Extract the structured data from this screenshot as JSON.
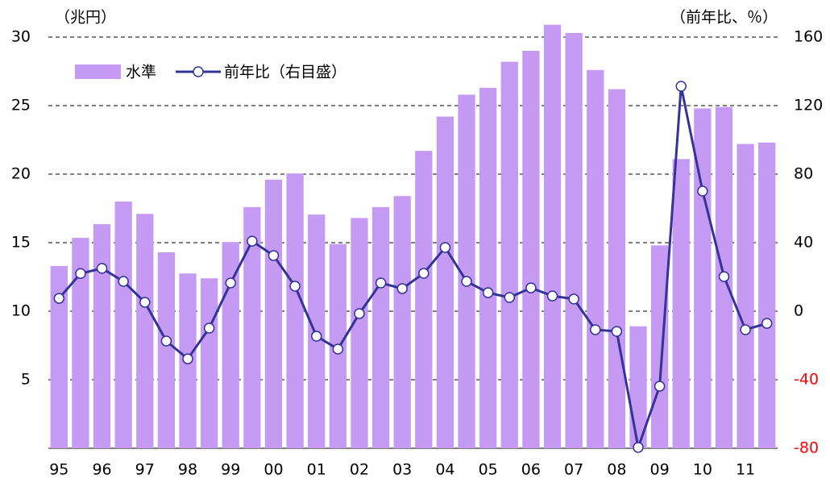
{
  "chart_data": {
    "type": "bar_line",
    "y_unit_label": "（兆円）",
    "y2_unit_label": "（前年比、％）",
    "categories": [
      "95",
      null,
      "96",
      null,
      "97",
      null,
      "98",
      null,
      "99",
      null,
      "00",
      null,
      "01",
      null,
      "02",
      null,
      "03",
      null,
      "04",
      null,
      "05",
      null,
      "06",
      null,
      "07",
      null,
      "08",
      null,
      "09",
      null,
      "10",
      null,
      "11",
      null
    ],
    "series": [
      {
        "name": "水準",
        "type": "bar",
        "color": "#c59af2",
        "values": [
          13.3,
          15.35,
          16.35,
          18.0,
          17.1,
          14.3,
          12.75,
          12.4,
          15.05,
          17.6,
          19.6,
          20.05,
          17.05,
          14.9,
          16.8,
          17.6,
          18.4,
          21.7,
          24.2,
          25.8,
          26.3,
          28.2,
          29.0,
          30.9,
          30.3,
          27.6,
          26.2,
          8.9,
          14.8,
          21.1,
          24.8,
          24.9,
          22.2,
          22.3
        ]
      },
      {
        "name": "前年比（右目盛）",
        "type": "line",
        "axis": "y2",
        "color": "#333399",
        "values": [
          7.5,
          22,
          25,
          17.4,
          5.2,
          -17.4,
          -27.8,
          -9.9,
          16.5,
          40.9,
          32.5,
          14.6,
          -14.6,
          -22.1,
          -1.4,
          16.5,
          13.2,
          22.1,
          37.2,
          17.4,
          10.8,
          8,
          13.6,
          8.9,
          7.1,
          -10.8,
          -11.8,
          -79.5,
          -43.8,
          131.3,
          70.1,
          20.2,
          -10.8,
          -7.1
        ]
      }
    ],
    "ylim": [
      0,
      30
    ],
    "yticks": [
      5,
      10,
      15,
      20,
      25,
      30
    ],
    "y2lim": [
      -80,
      160
    ],
    "y2ticks": [
      -80,
      -40,
      0,
      40,
      80,
      120,
      160
    ],
    "y2_negative_tick_color": "#ff0000",
    "grid": true,
    "legend": "upper left"
  }
}
